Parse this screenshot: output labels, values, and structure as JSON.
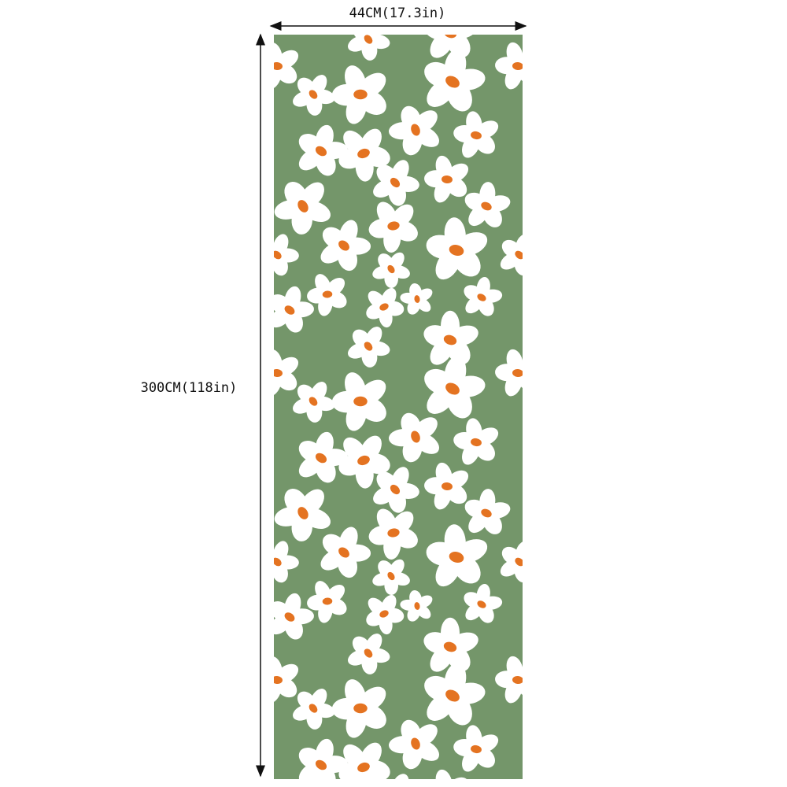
{
  "width_label": "44CM(17.3in)",
  "height_label": "300CM(118in)"
}
